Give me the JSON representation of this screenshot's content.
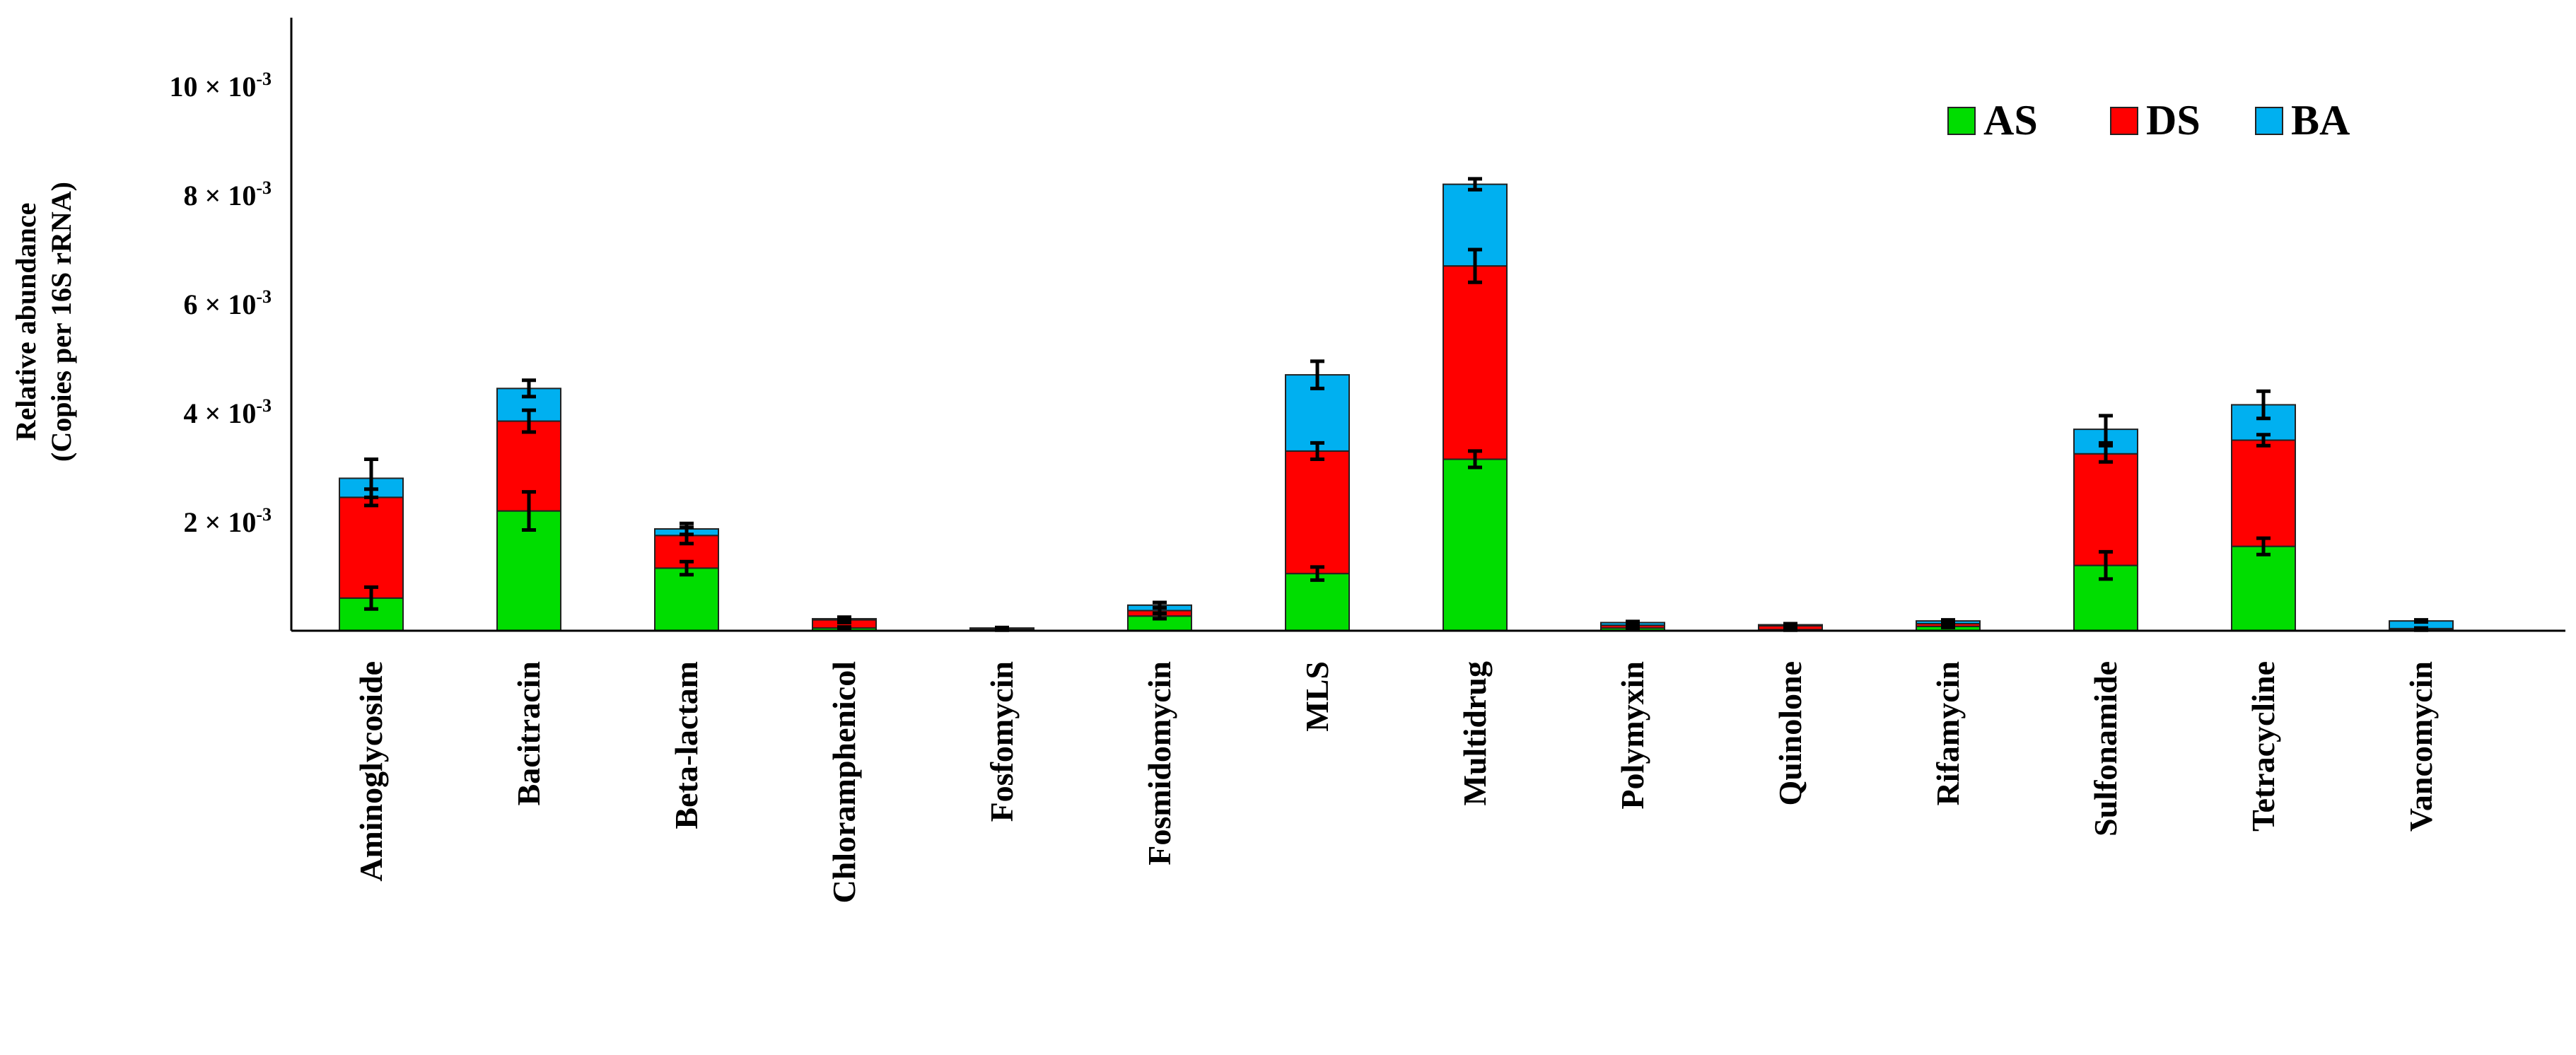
{
  "chart_data": {
    "type": "bar",
    "stacked": true,
    "ylabel_line1": "Relative abundance",
    "ylabel_line2": "(Copies per 16S rRNA)",
    "ylim": [
      0,
      11.0
    ],
    "yticks": [
      {
        "value": 2,
        "mantissa": "2 × 10",
        "exp": "-3"
      },
      {
        "value": 4,
        "mantissa": "4 × 10",
        "exp": "-3"
      },
      {
        "value": 6,
        "mantissa": "6 × 10",
        "exp": "-3"
      },
      {
        "value": 8,
        "mantissa": "8 × 10",
        "exp": "-3"
      },
      {
        "value": 10,
        "mantissa": "10 × 10",
        "exp": "-3"
      }
    ],
    "unit_note": "values in units of 10^-3",
    "categories": [
      "Aminoglycoside",
      "Bacitracin",
      "Beta-lactam",
      "Chloramphenicol",
      "Fosfomycin",
      "Fosmidomycin",
      "MLS",
      "Multidrug",
      "Polymyxin",
      "Quinolone",
      "Rifamycin",
      "Sulfonamide",
      "Tetracycline",
      "Vancomycin"
    ],
    "series": [
      {
        "name": "AS",
        "color": "#00dd00",
        "values": [
          0.6,
          2.2,
          1.15,
          0.05,
          0.02,
          0.27,
          1.05,
          3.15,
          0.05,
          0.02,
          0.08,
          1.2,
          1.55,
          0.02
        ],
        "errors": [
          0.2,
          0.35,
          0.12,
          0.02,
          0.01,
          0.05,
          0.12,
          0.15,
          0.02,
          0.01,
          0.02,
          0.25,
          0.15,
          0.01
        ]
      },
      {
        "name": "DS",
        "color": "#ff0000",
        "values": [
          1.85,
          1.65,
          0.6,
          0.15,
          0.02,
          0.1,
          2.25,
          3.55,
          0.05,
          0.07,
          0.05,
          2.05,
          1.95,
          0.02
        ],
        "errors": [
          0.15,
          0.2,
          0.15,
          0.05,
          0.01,
          0.05,
          0.15,
          0.3,
          0.02,
          0.02,
          0.02,
          0.15,
          0.1,
          0.01
        ]
      },
      {
        "name": "BA",
        "color": "#00b0f0",
        "values": [
          0.35,
          0.6,
          0.12,
          0.02,
          0.01,
          0.1,
          1.4,
          1.5,
          0.05,
          0.02,
          0.05,
          0.45,
          0.65,
          0.14
        ],
        "errors": [
          0.35,
          0.15,
          0.1,
          0.02,
          0.01,
          0.05,
          0.25,
          0.1,
          0.02,
          0.02,
          0.02,
          0.25,
          0.25,
          0.02
        ]
      }
    ],
    "legend_position": "top-right",
    "grid": false
  }
}
